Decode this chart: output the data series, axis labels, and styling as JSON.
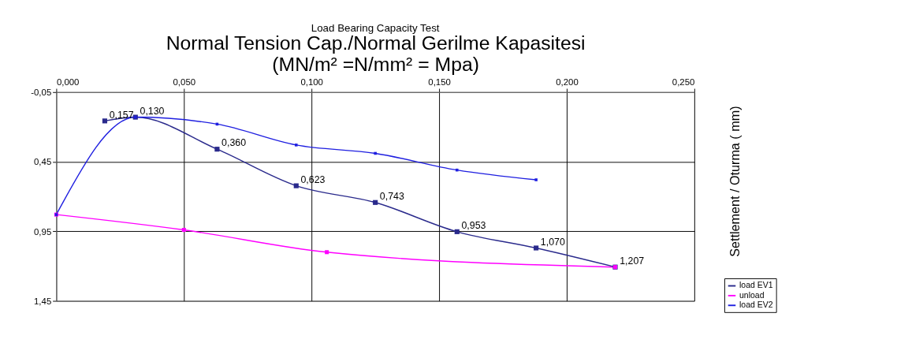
{
  "chart_data": {
    "type": "line",
    "title": "Load Bearing Capacity Test",
    "xlabel": "Normal Tension Cap./Normal Gerilme Kapasitesi (MN/m² =N/mm² = Mpa)",
    "ylabel": "Settlement / Oturma ( mm)",
    "series": [
      {
        "name": "load EV1",
        "color": "#2a2a8c",
        "x": [
          0.019,
          0.031,
          0.063,
          0.094,
          0.125,
          0.157,
          0.188,
          0.219
        ],
        "values": [
          0.157,
          0.13,
          0.36,
          0.623,
          0.743,
          0.953,
          1.07,
          1.207
        ],
        "value_labels": [
          "0,157",
          "0,130",
          "0,360",
          "0,623",
          "0,743",
          "0,953",
          "1,070",
          "1,207"
        ]
      },
      {
        "name": "unload",
        "color": "#ff00ff",
        "x": [
          0,
          0.05,
          0.106,
          0.219
        ],
        "values": [
          0.83,
          0.94,
          1.1,
          1.207
        ]
      },
      {
        "name": "load EV2",
        "color": "#1f1fe0",
        "x": [
          0,
          0.031,
          0.063,
          0.094,
          0.125,
          0.157,
          0.188
        ],
        "values": [
          0.83,
          0.13,
          0.18,
          0.33,
          0.39,
          0.51,
          0.58
        ]
      }
    ],
    "xlim": [
      0,
      0.25
    ],
    "xticks": [
      {
        "value": 0,
        "label": "0,000"
      },
      {
        "value": 0.05,
        "label": "0,050"
      },
      {
        "value": 0.1,
        "label": "0,100"
      },
      {
        "value": 0.15,
        "label": "0,150"
      },
      {
        "value": 0.2,
        "label": "0,200"
      },
      {
        "value": 0.25,
        "label": "0,250"
      }
    ],
    "ylim": [
      1.45,
      -0.05
    ],
    "yticks": [
      {
        "value": -0.05,
        "label": "-0,05"
      },
      {
        "value": 0.45,
        "label": "0,45"
      },
      {
        "value": 0.95,
        "label": "0,95"
      },
      {
        "value": 1.45,
        "label": "1,45"
      }
    ],
    "grid": true,
    "legend": "bottom right",
    "marker": "square",
    "line_style": "solid"
  }
}
